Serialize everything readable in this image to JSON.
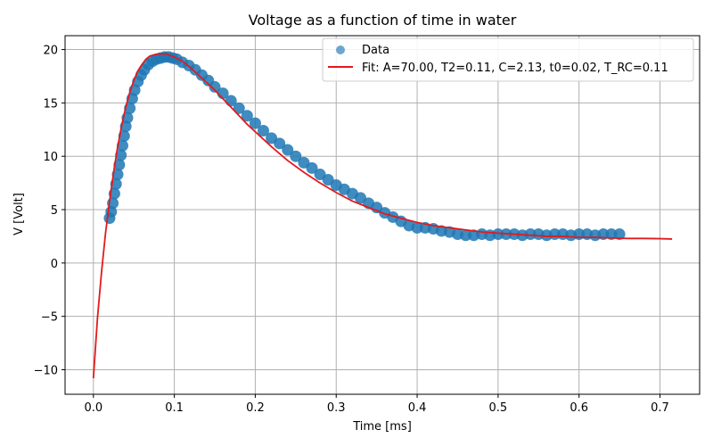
{
  "chart_data": {
    "type": "scatter",
    "title": "Voltage as a function of time in water",
    "xlabel": "Time [ms]",
    "ylabel": "V [Volt]",
    "xlim": [
      -0.035,
      0.749
    ],
    "ylim": [
      -12.3,
      21.3
    ],
    "xticks": [
      0.0,
      0.1,
      0.2,
      0.3,
      0.4,
      0.5,
      0.6,
      0.7
    ],
    "xtick_labels": [
      "0.0",
      "0.1",
      "0.2",
      "0.3",
      "0.4",
      "0.5",
      "0.6",
      "0.7"
    ],
    "yticks": [
      -10,
      -5,
      0,
      5,
      10,
      15,
      20
    ],
    "ytick_labels": [
      "−10",
      "−5",
      "0",
      "5",
      "10",
      "15",
      "20"
    ],
    "grid": true,
    "legend_position": "top-right",
    "colors": {
      "data": "#1f77b4",
      "fit": "#e31a1c",
      "grid": "#b0b0b0"
    },
    "series": [
      {
        "name": "Data",
        "kind": "scatter",
        "points": [
          [
            0.02,
            4.2
          ],
          [
            0.022,
            4.8
          ],
          [
            0.024,
            5.6
          ],
          [
            0.026,
            6.5
          ],
          [
            0.028,
            7.4
          ],
          [
            0.03,
            8.3
          ],
          [
            0.032,
            9.2
          ],
          [
            0.034,
            10.1
          ],
          [
            0.036,
            11.0
          ],
          [
            0.038,
            11.9
          ],
          [
            0.04,
            12.8
          ],
          [
            0.042,
            13.6
          ],
          [
            0.045,
            14.5
          ],
          [
            0.048,
            15.4
          ],
          [
            0.051,
            16.2
          ],
          [
            0.055,
            17.0
          ],
          [
            0.059,
            17.6
          ],
          [
            0.063,
            18.1
          ],
          [
            0.068,
            18.6
          ],
          [
            0.073,
            18.9
          ],
          [
            0.078,
            19.1
          ],
          [
            0.083,
            19.2
          ],
          [
            0.088,
            19.3
          ],
          [
            0.093,
            19.3
          ],
          [
            0.098,
            19.2
          ],
          [
            0.103,
            19.1
          ],
          [
            0.11,
            18.8
          ],
          [
            0.118,
            18.5
          ],
          [
            0.126,
            18.1
          ],
          [
            0.134,
            17.6
          ],
          [
            0.142,
            17.1
          ],
          [
            0.15,
            16.5
          ],
          [
            0.16,
            15.9
          ],
          [
            0.17,
            15.2
          ],
          [
            0.18,
            14.5
          ],
          [
            0.19,
            13.8
          ],
          [
            0.2,
            13.1
          ],
          [
            0.21,
            12.4
          ],
          [
            0.22,
            11.7
          ],
          [
            0.23,
            11.2
          ],
          [
            0.24,
            10.6
          ],
          [
            0.25,
            10.0
          ],
          [
            0.26,
            9.4
          ],
          [
            0.27,
            8.9
          ],
          [
            0.28,
            8.3
          ],
          [
            0.29,
            7.8
          ],
          [
            0.3,
            7.3
          ],
          [
            0.31,
            6.9
          ],
          [
            0.32,
            6.5
          ],
          [
            0.33,
            6.1
          ],
          [
            0.34,
            5.6
          ],
          [
            0.35,
            5.2
          ],
          [
            0.36,
            4.7
          ],
          [
            0.37,
            4.3
          ],
          [
            0.38,
            3.9
          ],
          [
            0.39,
            3.5
          ],
          [
            0.4,
            3.3
          ],
          [
            0.41,
            3.3
          ],
          [
            0.42,
            3.2
          ],
          [
            0.43,
            3.0
          ],
          [
            0.44,
            2.9
          ],
          [
            0.45,
            2.7
          ],
          [
            0.46,
            2.6
          ],
          [
            0.47,
            2.6
          ],
          [
            0.48,
            2.7
          ],
          [
            0.49,
            2.6
          ],
          [
            0.5,
            2.7
          ],
          [
            0.51,
            2.7
          ],
          [
            0.52,
            2.7
          ],
          [
            0.53,
            2.6
          ],
          [
            0.54,
            2.7
          ],
          [
            0.55,
            2.7
          ],
          [
            0.56,
            2.6
          ],
          [
            0.57,
            2.7
          ],
          [
            0.58,
            2.7
          ],
          [
            0.59,
            2.6
          ],
          [
            0.6,
            2.7
          ],
          [
            0.61,
            2.7
          ],
          [
            0.62,
            2.6
          ],
          [
            0.63,
            2.7
          ],
          [
            0.64,
            2.7
          ],
          [
            0.65,
            2.7
          ]
        ]
      },
      {
        "name": "Fit: A=70.00, T2=0.11, C=2.13, t0=0.02, T_RC=0.11",
        "kind": "line",
        "points": [
          [
            0.0,
            -10.8
          ],
          [
            0.005,
            -5.2
          ],
          [
            0.01,
            -0.9
          ],
          [
            0.015,
            2.8
          ],
          [
            0.02,
            5.8
          ],
          [
            0.025,
            8.5
          ],
          [
            0.03,
            10.9
          ],
          [
            0.035,
            12.9
          ],
          [
            0.04,
            14.6
          ],
          [
            0.045,
            16.0
          ],
          [
            0.05,
            17.1
          ],
          [
            0.055,
            18.0
          ],
          [
            0.06,
            18.6
          ],
          [
            0.065,
            19.1
          ],
          [
            0.07,
            19.4
          ],
          [
            0.08,
            19.6
          ],
          [
            0.09,
            19.6
          ],
          [
            0.1,
            19.3
          ],
          [
            0.11,
            18.9
          ],
          [
            0.12,
            18.3
          ],
          [
            0.13,
            17.6
          ],
          [
            0.14,
            16.9
          ],
          [
            0.15,
            16.2
          ],
          [
            0.16,
            15.4
          ],
          [
            0.17,
            14.6
          ],
          [
            0.18,
            13.8
          ],
          [
            0.19,
            13.0
          ],
          [
            0.2,
            12.3
          ],
          [
            0.22,
            10.9
          ],
          [
            0.24,
            9.6
          ],
          [
            0.26,
            8.5
          ],
          [
            0.28,
            7.5
          ],
          [
            0.3,
            6.6
          ],
          [
            0.32,
            5.8
          ],
          [
            0.34,
            5.2
          ],
          [
            0.36,
            4.6
          ],
          [
            0.38,
            4.2
          ],
          [
            0.4,
            3.8
          ],
          [
            0.42,
            3.5
          ],
          [
            0.44,
            3.3
          ],
          [
            0.46,
            3.1
          ],
          [
            0.48,
            2.9
          ],
          [
            0.5,
            2.8
          ],
          [
            0.52,
            2.7
          ],
          [
            0.54,
            2.6
          ],
          [
            0.56,
            2.5
          ],
          [
            0.58,
            2.5
          ],
          [
            0.6,
            2.4
          ],
          [
            0.62,
            2.4
          ],
          [
            0.64,
            2.35
          ],
          [
            0.66,
            2.3
          ],
          [
            0.68,
            2.3
          ],
          [
            0.7,
            2.28
          ],
          [
            0.715,
            2.25
          ]
        ]
      }
    ]
  }
}
